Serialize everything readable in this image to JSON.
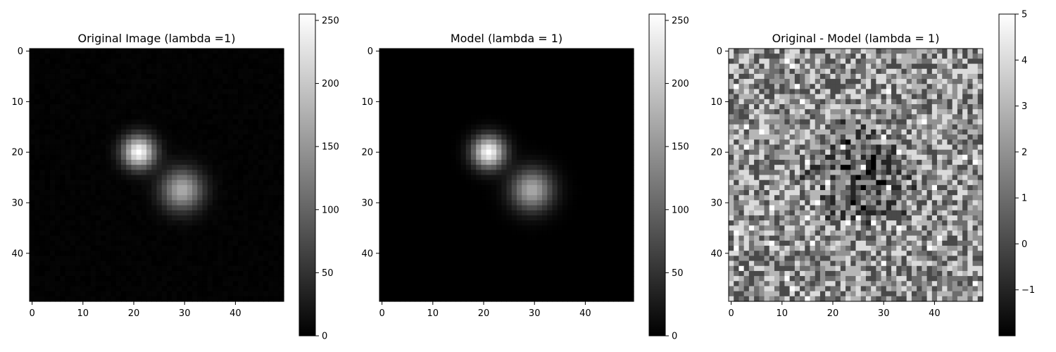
{
  "chart_data": [
    {
      "type": "heatmap",
      "title": "Original Image (lambda =1)",
      "grid": false,
      "image_size": [
        50,
        50
      ],
      "colormap": "gray",
      "xlim": [
        -0.5,
        49.5
      ],
      "ylim": [
        49.5,
        -0.5
      ],
      "xticks": [
        0,
        10,
        20,
        30,
        40
      ],
      "yticks": [
        0,
        10,
        20,
        30,
        40
      ],
      "xtick_labels": [
        "0",
        "10",
        "20",
        "30",
        "40"
      ],
      "ytick_labels": [
        "0",
        "10",
        "20",
        "30",
        "40"
      ],
      "colorbar": {
        "range": [
          0,
          255
        ],
        "ticks": [
          0,
          50,
          100,
          150,
          200,
          250
        ],
        "tick_labels": [
          "0",
          "50",
          "100",
          "150",
          "200",
          "250"
        ]
      },
      "sources": [
        {
          "x": 21,
          "y": 20,
          "peak": 252,
          "sigma": 2.2
        },
        {
          "x": 29.5,
          "y": 27.5,
          "peak": 170,
          "sigma": 2.8
        }
      ],
      "noise_amplitude": 5
    },
    {
      "type": "heatmap",
      "title": "Model (lambda = 1)",
      "grid": false,
      "image_size": [
        50,
        50
      ],
      "colormap": "gray",
      "xlim": [
        -0.5,
        49.5
      ],
      "ylim": [
        49.5,
        -0.5
      ],
      "xticks": [
        0,
        10,
        20,
        30,
        40
      ],
      "yticks": [
        0,
        10,
        20,
        30,
        40
      ],
      "xtick_labels": [
        "0",
        "10",
        "20",
        "30",
        "40"
      ],
      "ytick_labels": [
        "0",
        "10",
        "20",
        "30",
        "40"
      ],
      "colorbar": {
        "range": [
          0,
          255
        ],
        "ticks": [
          0,
          50,
          100,
          150,
          200,
          250
        ],
        "tick_labels": [
          "0",
          "50",
          "100",
          "150",
          "200",
          "250"
        ]
      },
      "sources": [
        {
          "x": 21,
          "y": 20,
          "peak": 252,
          "sigma": 2.2
        },
        {
          "x": 29.5,
          "y": 27.5,
          "peak": 170,
          "sigma": 2.8
        }
      ],
      "noise_amplitude": 0
    },
    {
      "type": "heatmap",
      "title": "Original - Model (lambda = 1)",
      "grid": false,
      "image_size": [
        50,
        50
      ],
      "colormap": "gray",
      "xlim": [
        -0.5,
        49.5
      ],
      "ylim": [
        49.5,
        -0.5
      ],
      "xticks": [
        0,
        10,
        20,
        30,
        40
      ],
      "yticks": [
        0,
        10,
        20,
        30,
        40
      ],
      "xtick_labels": [
        "0",
        "10",
        "20",
        "30",
        "40"
      ],
      "ytick_labels": [
        "0",
        "10",
        "20",
        "30",
        "40"
      ],
      "colorbar": {
        "range": [
          -2,
          5
        ],
        "ticks": [
          -1,
          0,
          1,
          2,
          3,
          4,
          5
        ],
        "tick_labels": [
          "−1",
          "0",
          "1",
          "2",
          "3",
          "4",
          "5"
        ]
      },
      "residual_range": [
        -2,
        5
      ],
      "residual_center": [
        25,
        25
      ],
      "residual_pattern": "random integer-valued noise, darker (lower) values concentrated near the image center"
    }
  ]
}
